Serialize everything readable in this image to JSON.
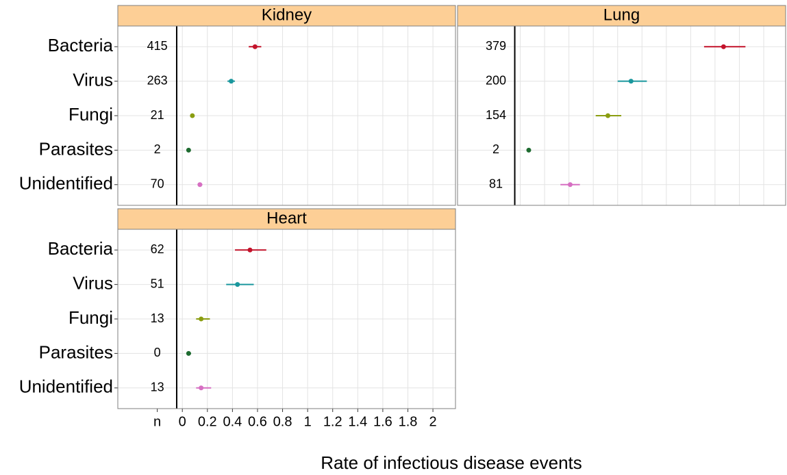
{
  "chart_data": {
    "type": "forest",
    "xlabel": "Rate of infectious disease events",
    "xlim": [
      -0.515,
      2.18
    ],
    "xticks": [
      {
        "value": -0.2,
        "label": "n"
      },
      0,
      0.2,
      0.4,
      0.6,
      0.8,
      1,
      1.2,
      1.4,
      1.6,
      1.8,
      2
    ],
    "vline": -0.045,
    "grid": true,
    "categories": [
      "Bacteria",
      "Virus",
      "Fungi",
      "Parasites",
      "Unidentified"
    ],
    "colors": [
      "#c3132b",
      "#1a979d",
      "#8a9d10",
      "#1e6b30",
      "#d66fc2"
    ],
    "panels": [
      {
        "title": "Kidney",
        "n": [
          415,
          263,
          21,
          2,
          70
        ],
        "values": [
          0.58,
          0.39,
          0.08,
          0.05,
          0.14
        ],
        "lower": [
          0.53,
          0.36,
          0.07,
          0.05,
          0.13
        ],
        "upper": [
          0.63,
          0.42,
          0.09,
          0.06,
          0.16
        ]
      },
      {
        "title": "Lung",
        "n": [
          379,
          200,
          154,
          2,
          81
        ],
        "values": [
          1.67,
          0.91,
          0.72,
          0.07,
          0.41
        ],
        "lower": [
          1.51,
          0.8,
          0.62,
          0.06,
          0.33
        ],
        "upper": [
          1.85,
          1.04,
          0.83,
          0.08,
          0.49
        ]
      },
      {
        "title": "Heart",
        "n": [
          62,
          51,
          13,
          0,
          13
        ],
        "values": [
          0.54,
          0.44,
          0.15,
          0.05,
          0.15
        ],
        "lower": [
          0.42,
          0.35,
          0.11,
          0.04,
          0.11
        ],
        "upper": [
          0.67,
          0.57,
          0.22,
          0.07,
          0.23
        ]
      }
    ]
  }
}
